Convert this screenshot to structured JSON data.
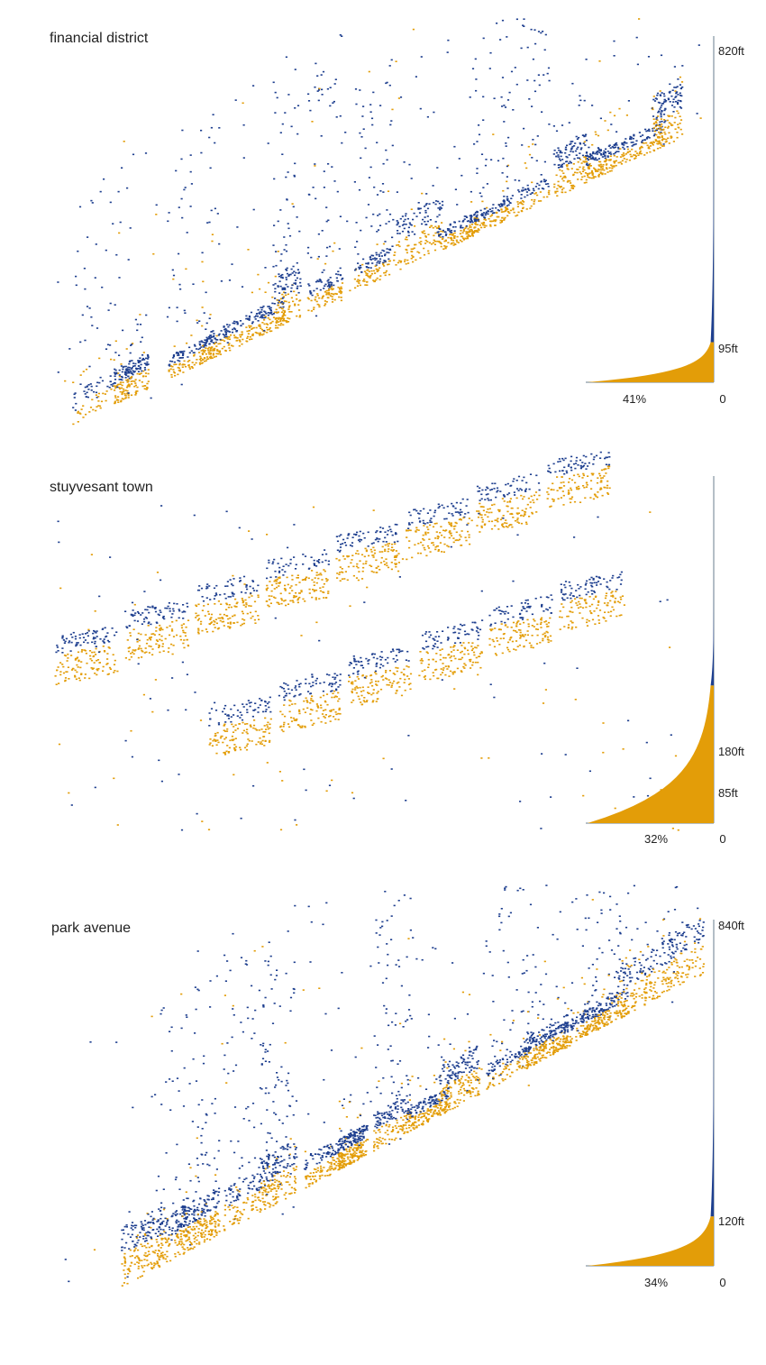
{
  "colors": {
    "above": "#1e3f8f",
    "below": "#e39d08",
    "axis": "#6b7f8f"
  },
  "chart_data": [
    {
      "type": "area",
      "title": "financial district",
      "height_max_label": "820ft",
      "threshold_label": "95ft",
      "share_label": "41%",
      "zero_label": "0",
      "height_max": 820,
      "threshold": 95,
      "share_below": 0.41
    },
    {
      "type": "area",
      "title": "stuyvesant town",
      "height_max_label": "180ft",
      "threshold_label": "85ft",
      "share_label": "32%",
      "zero_label": "0",
      "height_max": 180,
      "threshold": 85,
      "share_below": 0.32
    },
    {
      "type": "area",
      "title": "park avenue",
      "height_max_label": "840ft",
      "threshold_label": "120ft",
      "share_label": "34%",
      "zero_label": "0",
      "height_max": 840,
      "threshold": 120,
      "share_below": 0.34
    }
  ]
}
